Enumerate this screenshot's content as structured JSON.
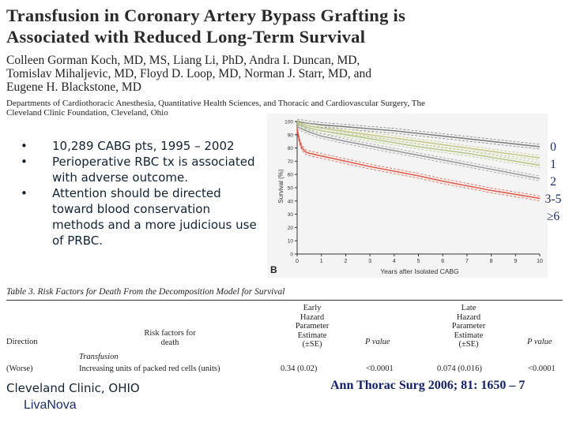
{
  "paper": {
    "title_line1": "Transfusion in Coronary Artery Bypass Grafting is",
    "title_line2": "Associated with Reduced Long-Term Survival",
    "authors_line1": "Colleen Gorman Koch, MD, MS, Liang Li, PhD, Andra I. Duncan, MD,",
    "authors_line2": "Tomislav Mihaljevic, MD, Floyd D. Loop, MD, Norman J. Starr, MD, and",
    "authors_line3": "Eugene H. Blackstone, MD",
    "depts_line1": "Departments of Cardiothoracic Anesthesia, Quantitative Health Sciences, and Thoracic and Cardiovascular Surgery, The",
    "depts_line2": "Cleveland Clinic Foundation, Cleveland, Ohio"
  },
  "bullets": [
    {
      "dot": "•",
      "text": "10,289 CABG pts, 1995 – 2002"
    },
    {
      "dot": "•",
      "text": "Perioperative RBC tx is associated with adverse outcome."
    },
    {
      "dot": "•",
      "text": "Attention should be directed toward blood conservation methods and a more judicious use of PRBC."
    }
  ],
  "chart_data": {
    "type": "line",
    "panel_label": "B",
    "title": "",
    "xlabel": "Years after Isolated CABG",
    "ylabel": "Survival (%)",
    "xlim": [
      0,
      10
    ],
    "ylim": [
      0,
      100
    ],
    "xticks": [
      "0",
      "1",
      "2",
      "3",
      "4",
      "5",
      "6",
      "7",
      "8",
      "9",
      "10"
    ],
    "yticks": [
      "0",
      "10",
      "20",
      "30",
      "40",
      "50",
      "60",
      "70",
      "80",
      "90",
      "100"
    ],
    "series": [
      {
        "name": "0",
        "color": "#7f7f7f",
        "x": [
          0,
          0.5,
          1,
          2,
          3,
          4,
          5,
          6,
          7,
          8,
          9,
          10
        ],
        "values": [
          100,
          98.5,
          97.5,
          96,
          94.5,
          93,
          91,
          89,
          87,
          85,
          83,
          81
        ]
      },
      {
        "name": "1",
        "color": "#c9c98a",
        "x": [
          0,
          0.5,
          1,
          2,
          3,
          4,
          5,
          6,
          7,
          8,
          9,
          10
        ],
        "values": [
          99,
          96.5,
          95,
          92.5,
          90,
          87.5,
          85,
          82.5,
          80,
          77.5,
          75,
          72.5
        ]
      },
      {
        "name": "2",
        "color": "#b5c98a",
        "x": [
          0,
          0.5,
          1,
          2,
          3,
          4,
          5,
          6,
          7,
          8,
          9,
          10
        ],
        "values": [
          98,
          95,
          93,
          90,
          87,
          84,
          81,
          78.5,
          76,
          73,
          70,
          67
        ]
      },
      {
        "name": "3-5",
        "color": "#9a9a9a",
        "x": [
          0,
          0.5,
          1,
          2,
          3,
          4,
          5,
          6,
          7,
          8,
          9,
          10
        ],
        "values": [
          96,
          92,
          89,
          85,
          81.5,
          78,
          74.5,
          71,
          67.5,
          64,
          60.5,
          57
        ]
      },
      {
        "name": "≥6",
        "color": "#e05a4a",
        "x": [
          0,
          0.1,
          0.2,
          0.35,
          0.5,
          1,
          2,
          3,
          4,
          5,
          6,
          7,
          8,
          9,
          10
        ],
        "values": [
          94,
          85,
          80,
          77,
          76,
          74,
          70,
          66,
          62.5,
          59,
          55,
          51.5,
          48,
          45,
          42
        ]
      }
    ],
    "legend_labels": [
      "0",
      "1",
      "2",
      "3-5",
      "≥6"
    ]
  },
  "table": {
    "caption": "Table 3.  Risk Factors for Death From the Decomposition Model for Survival",
    "headers": {
      "direction": "Direction",
      "risk_line1": "Risk factors for",
      "risk_line2": "death",
      "early_line1": "Early",
      "early_line2": "Hazard",
      "early_line3": "Parameter",
      "early_line4": "Estimate",
      "early_line5": "(±SE)",
      "pvalue1": "P value",
      "late_line1": "Late",
      "late_line2": "Hazard",
      "late_line3": "Parameter",
      "late_line4": "Estimate",
      "late_line5": "(±SE)",
      "pvalue2": "P value"
    },
    "section": "Transfusion",
    "row": {
      "direction": "(Worse)",
      "factor": "Increasing units of packed red cells (units)",
      "early_estimate": "0.34 (0.02)",
      "early_p": "<0.0001",
      "late_estimate": "0.074 (0.016)",
      "late_p": "<0.0001"
    }
  },
  "footer": {
    "left": "Cleveland Clinic, OHIO",
    "right": "Ann Thorac Surg 2006; 81: 1650 – 7",
    "logo": "LivaNova"
  }
}
